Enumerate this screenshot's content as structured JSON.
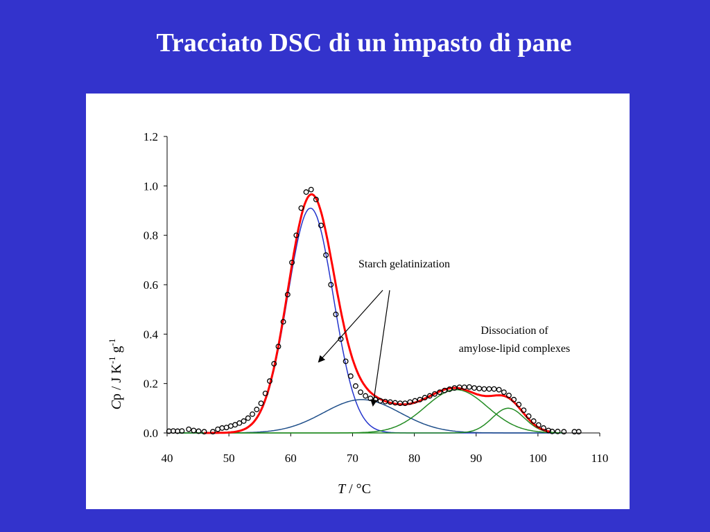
{
  "slide": {
    "title": "Tracciato DSC di un impasto di pane"
  },
  "chart_data": {
    "type": "line",
    "xlabel_var": "T",
    "xlabel_unit": " / °C",
    "ylabel_var": "C",
    "ylabel_rest": "p / J K",
    "ylabel_exp1": "-1",
    "ylabel_g": " g",
    "ylabel_exp2": "-1",
    "xlim": [
      40,
      110
    ],
    "ylim": [
      0,
      1.2
    ],
    "xticks": [
      40,
      50,
      60,
      70,
      80,
      90,
      100,
      110
    ],
    "yticks": [
      0.0,
      0.2,
      0.4,
      0.6,
      0.8,
      1.0,
      1.2
    ],
    "ytick_labels": [
      "0.0",
      "0.2",
      "0.4",
      "0.6",
      "0.8",
      "1.0",
      "1.2"
    ],
    "annotations": {
      "starch": "Starch gelatinization",
      "dissociation_line1": "Dissociation of",
      "dissociation_line2": "amylose-lipid complexes"
    },
    "colors": {
      "measured": "#000000",
      "fit": "#ff0000",
      "peak_starch_main": "#2233cc",
      "peak_starch_broad": "#1f4f8a",
      "peak_complex": "#228b22"
    },
    "gauss_components": [
      {
        "role": "starch-main",
        "color": "#2233cc",
        "center": 63.2,
        "height": 0.91,
        "width": 3.7
      },
      {
        "role": "starch-broad",
        "color": "#1f4f8a",
        "center": 71.5,
        "height": 0.135,
        "width": 6.2
      },
      {
        "role": "complex-1",
        "color": "#228b22",
        "center": 86.8,
        "height": 0.175,
        "width": 5.0
      },
      {
        "role": "complex-2",
        "color": "#228b22",
        "center": 95.2,
        "height": 0.1,
        "width": 2.6
      }
    ],
    "measured_points": [
      [
        40.3,
        0.007
      ],
      [
        41.0,
        0.008
      ],
      [
        41.7,
        0.007
      ],
      [
        42.4,
        0.008
      ],
      [
        43.5,
        0.015
      ],
      [
        44.3,
        0.01
      ],
      [
        45.1,
        0.007
      ],
      [
        46.0,
        0.005
      ],
      [
        47.4,
        0.005
      ],
      [
        48.2,
        0.015
      ],
      [
        48.9,
        0.02
      ],
      [
        49.6,
        0.022
      ],
      [
        50.3,
        0.028
      ],
      [
        51.0,
        0.033
      ],
      [
        51.7,
        0.04
      ],
      [
        52.4,
        0.048
      ],
      [
        53.1,
        0.06
      ],
      [
        53.8,
        0.076
      ],
      [
        54.5,
        0.095
      ],
      [
        55.2,
        0.12
      ],
      [
        55.9,
        0.16
      ],
      [
        56.6,
        0.21
      ],
      [
        57.3,
        0.28
      ],
      [
        58.0,
        0.35
      ],
      [
        58.8,
        0.45
      ],
      [
        59.5,
        0.56
      ],
      [
        60.2,
        0.69
      ],
      [
        60.9,
        0.8
      ],
      [
        61.7,
        0.91
      ],
      [
        62.5,
        0.975
      ],
      [
        63.3,
        0.985
      ],
      [
        64.1,
        0.945
      ],
      [
        64.9,
        0.84
      ],
      [
        65.7,
        0.72
      ],
      [
        66.5,
        0.6
      ],
      [
        67.3,
        0.48
      ],
      [
        68.1,
        0.38
      ],
      [
        68.9,
        0.29
      ],
      [
        69.7,
        0.23
      ],
      [
        70.5,
        0.19
      ],
      [
        71.3,
        0.165
      ],
      [
        72.1,
        0.15
      ],
      [
        72.9,
        0.14
      ],
      [
        73.7,
        0.135
      ],
      [
        74.5,
        0.13
      ],
      [
        75.3,
        0.127
      ],
      [
        76.1,
        0.125
      ],
      [
        76.9,
        0.122
      ],
      [
        77.7,
        0.12
      ],
      [
        78.5,
        0.12
      ],
      [
        79.3,
        0.125
      ],
      [
        80.1,
        0.13
      ],
      [
        80.9,
        0.135
      ],
      [
        81.7,
        0.143
      ],
      [
        82.5,
        0.15
      ],
      [
        83.3,
        0.158
      ],
      [
        84.1,
        0.165
      ],
      [
        84.9,
        0.172
      ],
      [
        85.7,
        0.177
      ],
      [
        86.5,
        0.182
      ],
      [
        87.3,
        0.185
      ],
      [
        88.1,
        0.185
      ],
      [
        88.9,
        0.186
      ],
      [
        89.7,
        0.182
      ],
      [
        90.5,
        0.18
      ],
      [
        91.3,
        0.178
      ],
      [
        92.1,
        0.178
      ],
      [
        92.9,
        0.178
      ],
      [
        93.7,
        0.175
      ],
      [
        94.5,
        0.165
      ],
      [
        95.3,
        0.152
      ],
      [
        96.1,
        0.135
      ],
      [
        96.9,
        0.115
      ],
      [
        97.7,
        0.092
      ],
      [
        98.5,
        0.068
      ],
      [
        99.3,
        0.048
      ],
      [
        100.1,
        0.032
      ],
      [
        100.9,
        0.02
      ],
      [
        101.7,
        0.01
      ],
      [
        102.3,
        0.006
      ],
      [
        103.2,
        0.006
      ],
      [
        104.2,
        0.005
      ],
      [
        105.9,
        0.005
      ],
      [
        106.6,
        0.005
      ]
    ]
  }
}
